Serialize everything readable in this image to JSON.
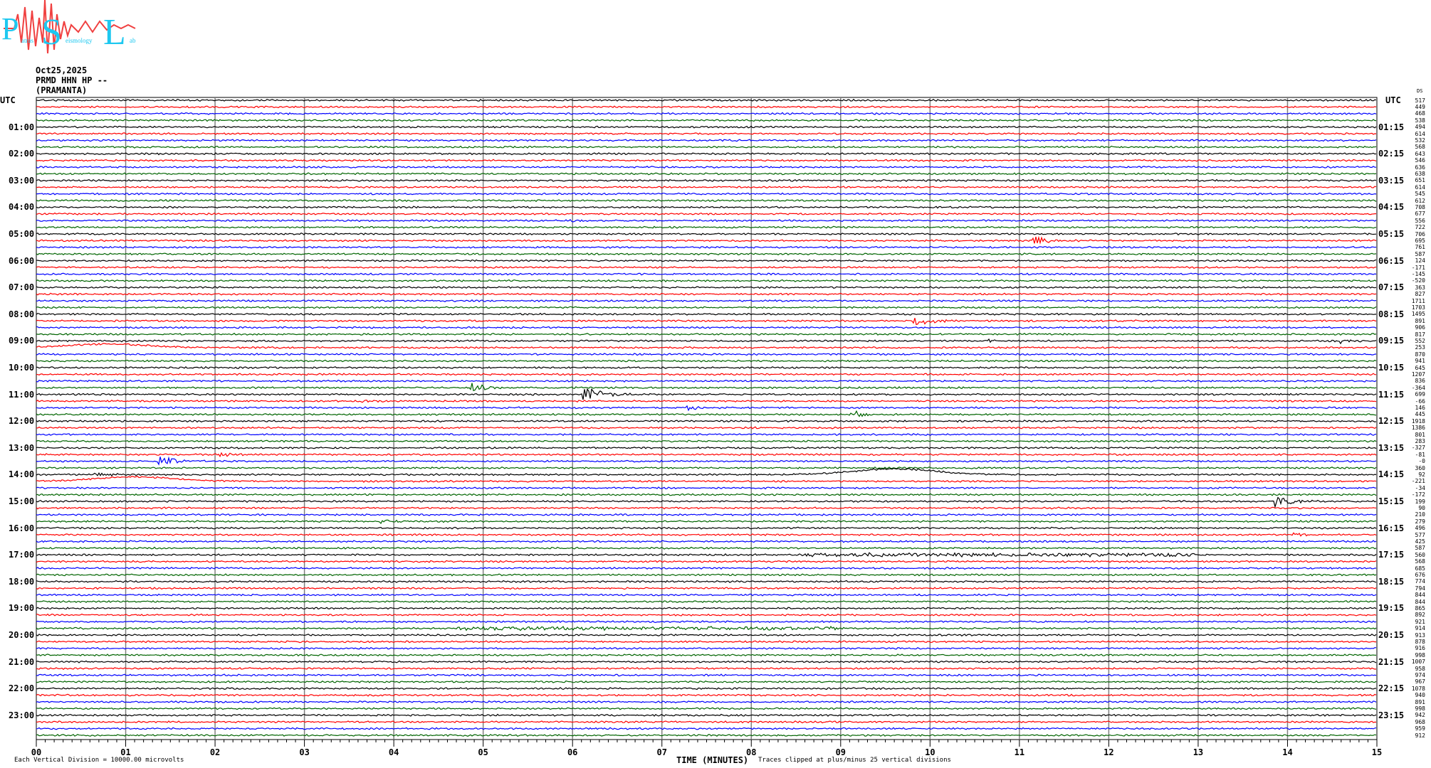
{
  "logo": {
    "text": "Patras Seismology Lab",
    "letters": [
      "P",
      "S",
      "L"
    ],
    "colors": {
      "letters": "#1ec8f0",
      "wave": "#f04040"
    }
  },
  "header": {
    "date": "Oct25,2025",
    "station": "PRMD HHN HP --",
    "site": "(PRAMANTA)"
  },
  "left_labels": [
    "UTC",
    "01:00",
    "02:00",
    "03:00",
    "04:00",
    "05:00",
    "06:00",
    "07:00",
    "08:00",
    "09:00",
    "10:00",
    "11:00",
    "12:00",
    "13:00",
    "14:00",
    "15:00",
    "16:00",
    "17:00",
    "18:00",
    "19:00",
    "20:00",
    "21:00",
    "22:00",
    "23:00"
  ],
  "right_labels": [
    "UTC",
    "01:15",
    "02:15",
    "03:15",
    "04:15",
    "05:15",
    "06:15",
    "07:15",
    "08:15",
    "09:15",
    "10:15",
    "11:15",
    "12:15",
    "13:15",
    "14:15",
    "15:15",
    "16:15",
    "17:15",
    "18:15",
    "19:15",
    "20:15",
    "21:15",
    "22:15",
    "23:15"
  ],
  "right_header": "DS",
  "trace_values": [
    "517",
    "449",
    "468",
    "538",
    "494",
    "614",
    "532",
    "568",
    "643",
    "546",
    "636",
    "638",
    "651",
    "614",
    "545",
    "612",
    "708",
    "677",
    "556",
    "722",
    "706",
    "695",
    "761",
    "587",
    "124",
    "-171",
    "-145",
    "-520",
    "363",
    "827",
    "1711",
    "1703",
    "1495",
    "891",
    "906",
    "817",
    "552",
    "253",
    "870",
    "941",
    "645",
    "1207",
    "836",
    "-364",
    "699",
    "-66",
    "146",
    "445",
    "1918",
    "1386",
    "801",
    "283",
    "-327",
    "-81",
    "-0",
    "360",
    "92",
    "-221",
    "-34",
    "-172",
    "199",
    "90",
    "210",
    "279",
    "496",
    "577",
    "425",
    "587",
    "560",
    "568",
    "685",
    "676",
    "774",
    "794",
    "844",
    "844",
    "865",
    "892",
    "921",
    "914",
    "913",
    "878",
    "916",
    "998",
    "1007",
    "958",
    "974",
    "967",
    "1078",
    "940",
    "891",
    "998",
    "942",
    "968",
    "959",
    "912"
  ],
  "trace_colors": [
    "#000000",
    "#ff0000",
    "#0000ff",
    "#006400"
  ],
  "grid_color": "#808080",
  "x_ticks": [
    "00",
    "01",
    "02",
    "03",
    "04",
    "05",
    "06",
    "07",
    "08",
    "09",
    "10",
    "11",
    "12",
    "13",
    "14",
    "15"
  ],
  "x_label": "TIME (MINUTES)",
  "footer": {
    "scale": "Each Vertical Division = 10000.00 microvolts",
    "clip": "Traces clipped at plus/minus 25 vertical divisions"
  },
  "chart_data": {
    "type": "line",
    "xlabel": "TIME (MINUTES)",
    "xlim": [
      0,
      15
    ],
    "rows": 96,
    "events": [
      {
        "row": 44,
        "minute": 6.16,
        "amp": 12,
        "kind": "burst"
      },
      {
        "row": 43,
        "minute": 4.9,
        "amp": 7,
        "kind": "burst"
      },
      {
        "row": 21,
        "minute": 11.18,
        "amp": 6,
        "kind": "burst"
      },
      {
        "row": 33,
        "minute": 9.85,
        "amp": 9,
        "kind": "burst"
      },
      {
        "row": 46,
        "minute": 7.32,
        "amp": 4,
        "kind": "burst"
      },
      {
        "row": 47,
        "minute": 9.15,
        "amp": 5,
        "kind": "burst"
      },
      {
        "row": 54,
        "minute": 1.41,
        "amp": 8,
        "kind": "burst"
      },
      {
        "row": 60,
        "minute": 13.9,
        "amp": 7,
        "kind": "burst"
      },
      {
        "row": 56,
        "minute": 9.6,
        "amp": -8,
        "kind": "bump"
      },
      {
        "row": 57,
        "minute": 1.1,
        "amp": -6,
        "kind": "bump"
      },
      {
        "row": 37,
        "minute": 0.8,
        "amp": -5,
        "kind": "bump"
      },
      {
        "row": 68,
        "minute": 10.8,
        "amp": 2,
        "kind": "band"
      },
      {
        "row": 79,
        "minute": 6.9,
        "amp": 2,
        "kind": "band"
      },
      {
        "row": 56,
        "minute": 0.7,
        "amp": 3,
        "kind": "burst"
      },
      {
        "row": 53,
        "minute": 2.1,
        "amp": 3,
        "kind": "burst"
      },
      {
        "row": 45,
        "minute": 3.6,
        "amp": 3,
        "kind": "burst"
      },
      {
        "row": 65,
        "minute": 14.1,
        "amp": 3,
        "kind": "burst"
      },
      {
        "row": 18,
        "minute": 6.0,
        "amp": 3,
        "kind": "burst"
      },
      {
        "row": 36,
        "minute": 10.6,
        "amp": 3,
        "kind": "burst"
      },
      {
        "row": 36,
        "minute": 14.6,
        "amp": 3,
        "kind": "burst"
      },
      {
        "row": 63,
        "minute": 3.9,
        "amp": 3,
        "kind": "burst"
      }
    ]
  }
}
